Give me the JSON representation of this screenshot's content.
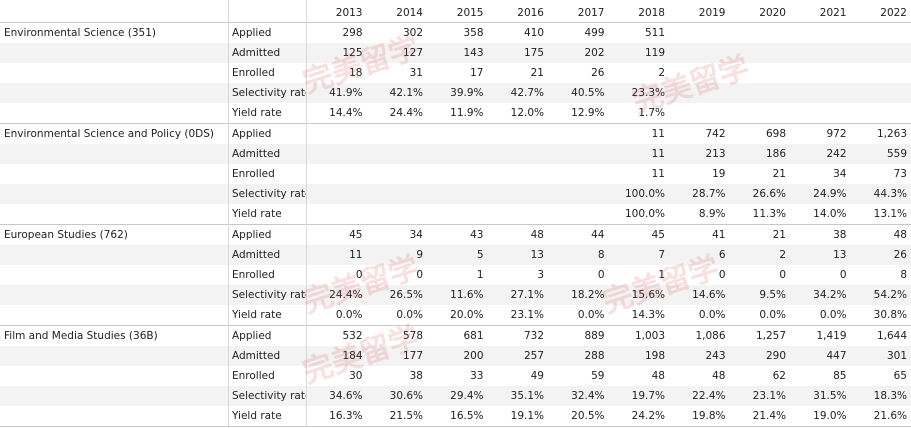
{
  "header": {
    "years": [
      "2013",
      "2014",
      "2015",
      "2016",
      "2017",
      "2018",
      "2019",
      "2020",
      "2021",
      "2022"
    ]
  },
  "watermark": "完美留学",
  "groups": [
    {
      "name": "Environmental Science (351)",
      "rows": [
        {
          "label": "Applied",
          "cells": [
            "298",
            "302",
            "358",
            "410",
            "499",
            "511",
            null,
            null,
            null,
            null
          ]
        },
        {
          "label": "Admitted",
          "cells": [
            "125",
            "127",
            "143",
            "175",
            "202",
            "119",
            null,
            null,
            null,
            null
          ]
        },
        {
          "label": "Enrolled",
          "cells": [
            "18",
            "31",
            "17",
            "21",
            "26",
            "2",
            null,
            null,
            null,
            null
          ]
        },
        {
          "label": "Selectivity rate",
          "cells": [
            "41.9%",
            "42.1%",
            "39.9%",
            "42.7%",
            "40.5%",
            "23.3%",
            null,
            null,
            null,
            null
          ]
        },
        {
          "label": "Yield rate",
          "cells": [
            "14.4%",
            "24.4%",
            "11.9%",
            "12.0%",
            "12.9%",
            "1.7%",
            null,
            null,
            null,
            null
          ]
        }
      ]
    },
    {
      "name": "Environmental Science and Policy (0DS)",
      "rows": [
        {
          "label": "Applied",
          "cells": [
            null,
            null,
            null,
            null,
            null,
            "11",
            "742",
            "698",
            "972",
            "1,263"
          ]
        },
        {
          "label": "Admitted",
          "cells": [
            null,
            null,
            null,
            null,
            null,
            "11",
            "213",
            "186",
            "242",
            "559"
          ]
        },
        {
          "label": "Enrolled",
          "cells": [
            null,
            null,
            null,
            null,
            null,
            "11",
            "19",
            "21",
            "34",
            "73"
          ]
        },
        {
          "label": "Selectivity rate",
          "cells": [
            null,
            null,
            null,
            null,
            null,
            "100.0%",
            "28.7%",
            "26.6%",
            "24.9%",
            "44.3%"
          ]
        },
        {
          "label": "Yield rate",
          "cells": [
            null,
            null,
            null,
            null,
            null,
            "100.0%",
            "8.9%",
            "11.3%",
            "14.0%",
            "13.1%"
          ]
        }
      ]
    },
    {
      "name": "European Studies (762)",
      "rows": [
        {
          "label": "Applied",
          "cells": [
            "45",
            "34",
            "43",
            "48",
            "44",
            "45",
            "41",
            "21",
            "38",
            "48"
          ]
        },
        {
          "label": "Admitted",
          "cells": [
            "11",
            "9",
            "5",
            "13",
            "8",
            "7",
            "6",
            "2",
            "13",
            "26"
          ]
        },
        {
          "label": "Enrolled",
          "cells": [
            "0",
            "0",
            "1",
            "3",
            "0",
            "1",
            "0",
            "0",
            "0",
            "8"
          ]
        },
        {
          "label": "Selectivity rate",
          "cells": [
            "24.4%",
            "26.5%",
            "11.6%",
            "27.1%",
            "18.2%",
            "15.6%",
            "14.6%",
            "9.5%",
            "34.2%",
            "54.2%"
          ]
        },
        {
          "label": "Yield rate",
          "cells": [
            "0.0%",
            "0.0%",
            "20.0%",
            "23.1%",
            "0.0%",
            "14.3%",
            "0.0%",
            "0.0%",
            "0.0%",
            "30.8%"
          ]
        }
      ]
    },
    {
      "name": "Film and Media Studies (36B)",
      "rows": [
        {
          "label": "Applied",
          "cells": [
            "532",
            "578",
            "681",
            "732",
            "889",
            "1,003",
            "1,086",
            "1,257",
            "1,419",
            "1,644"
          ]
        },
        {
          "label": "Admitted",
          "cells": [
            "184",
            "177",
            "200",
            "257",
            "288",
            "198",
            "243",
            "290",
            "447",
            "301"
          ]
        },
        {
          "label": "Enrolled",
          "cells": [
            "30",
            "38",
            "33",
            "49",
            "59",
            "48",
            "48",
            "62",
            "85",
            "65"
          ]
        },
        {
          "label": "Selectivity rate",
          "cells": [
            "34.6%",
            "30.6%",
            "29.4%",
            "35.1%",
            "32.4%",
            "19.7%",
            "22.4%",
            "23.1%",
            "31.5%",
            "18.3%"
          ]
        },
        {
          "label": "Yield rate",
          "cells": [
            "16.3%",
            "21.5%",
            "16.5%",
            "19.1%",
            "20.5%",
            "24.2%",
            "19.8%",
            "21.4%",
            "19.0%",
            "21.6%"
          ]
        }
      ]
    }
  ]
}
